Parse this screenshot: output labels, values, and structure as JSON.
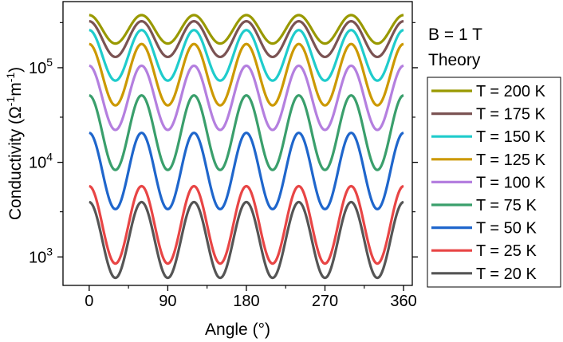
{
  "chart_data": {
    "type": "line",
    "title": "",
    "xlabel": "Angle (°)",
    "ylabel_prefix": "Conductivity (Ω",
    "ylabel_exp1": "-1",
    "ylabel_mid": "m",
    "ylabel_exp2": "-1",
    "ylabel_suffix": ")",
    "xlim": [
      -30,
      370
    ],
    "ylim": [
      500,
      500000
    ],
    "yscale": "log",
    "xticks": [
      0,
      90,
      180,
      270,
      360
    ],
    "xtick_labels": [
      "0",
      "90",
      "180",
      "270",
      "360"
    ],
    "yticks": [
      1000,
      10000,
      100000
    ],
    "ytick_base": "10",
    "ytick_exponents": [
      "3",
      "4",
      "5"
    ],
    "period_deg": 60,
    "peak_angles": [
      0,
      60,
      120,
      180,
      240,
      300,
      360
    ],
    "annotations": [
      "B = 1 T",
      "Theory"
    ],
    "legend_position": "right",
    "series": [
      {
        "name": "T = 200 K",
        "color": "#999900",
        "max": 360000,
        "min": 180000
      },
      {
        "name": "T = 175 K",
        "color": "#7b5353",
        "max": 310000,
        "min": 130000
      },
      {
        "name": "T = 150 K",
        "color": "#1fcccc",
        "max": 250000,
        "min": 73000
      },
      {
        "name": "T = 125 K",
        "color": "#cc9900",
        "max": 178000,
        "min": 40000
      },
      {
        "name": "T = 100 K",
        "color": "#b47fdf",
        "max": 105000,
        "min": 22000
      },
      {
        "name": "T = 75 K",
        "color": "#3a9f6c",
        "max": 51000,
        "min": 8300
      },
      {
        "name": "T = 50 K",
        "color": "#1f66cc",
        "max": 20500,
        "min": 3200
      },
      {
        "name": "T = 25 K",
        "color": "#e84545",
        "max": 5600,
        "min": 850
      },
      {
        "name": "T = 20 K",
        "color": "#555555",
        "max": 3800,
        "min": 600
      }
    ]
  }
}
